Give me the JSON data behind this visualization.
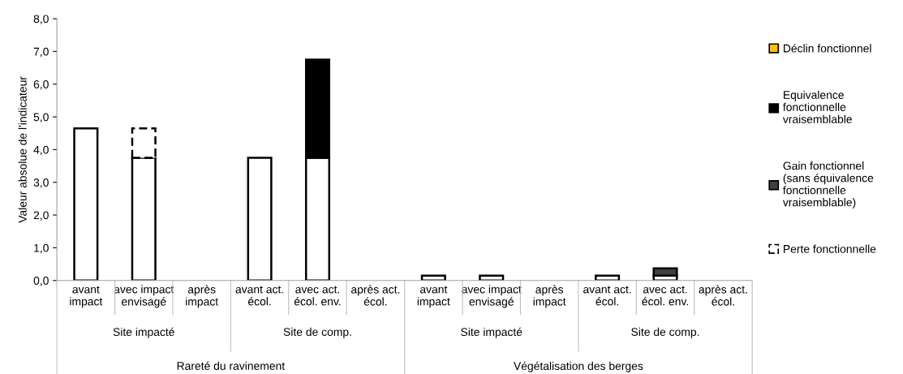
{
  "chart_data": {
    "type": "bar",
    "stacked": true,
    "ylabel": "Valeur absolue de l'indicateur",
    "categories": [
      "avant\nimpact",
      "avec impact\nenvisagé",
      "après\nimpact",
      "avant act.\nécol.",
      "avec act.\nécol. env.",
      "après act.\nécol.",
      "avant\nimpact",
      "avec impact\nenvisagé",
      "après\nimpact",
      "avant act.\nécol.",
      "avec act.\nécol. env.",
      "après act.\nécol."
    ],
    "annotations": [
      "Site impacté",
      "Site de comp.",
      "Site impacté",
      "Site de comp.",
      "Rareté du ravinement",
      "Végétalisation des berges"
    ],
    "series": [
      {
        "color": "#ffffff",
        "values": [
          4.65,
          3.75,
          null,
          3.75,
          3.75,
          null,
          0.15,
          0.15,
          null,
          0.15,
          0.15,
          null
        ]
      },
      {
        "name": "Perte fonctionnelle",
        "color": "#ffffff",
        "line_style": "dashed",
        "values": [
          null,
          0.9,
          null,
          null,
          null,
          null,
          null,
          null,
          null,
          null,
          null,
          null
        ]
      },
      {
        "name": "Gain fonctionnel (sans équivalence fonctionnelle vraisemblable)",
        "color": "#404040",
        "values": [
          null,
          null,
          null,
          null,
          null,
          null,
          null,
          null,
          null,
          null,
          0.22,
          null
        ]
      },
      {
        "name": "Equivalence fonctionnelle vraisemblable",
        "color": "#000000",
        "values": [
          null,
          null,
          null,
          null,
          3.0,
          null,
          null,
          null,
          null,
          null,
          null,
          null
        ]
      },
      {
        "name": "Déclin fonctionnel",
        "color": "#ffc000",
        "values": [
          null,
          null,
          null,
          null,
          null,
          null,
          null,
          null,
          null,
          null,
          null,
          null
        ]
      }
    ],
    "ylim": [
      0,
      8
    ],
    "yticks": [
      {
        "value": 0,
        "label": "0,0"
      },
      {
        "value": 1,
        "label": "1,0"
      },
      {
        "value": 2,
        "label": "2,0"
      },
      {
        "value": 3,
        "label": "3,0"
      },
      {
        "value": 4,
        "label": "4,0"
      },
      {
        "value": 5,
        "label": "5,0"
      },
      {
        "value": 6,
        "label": "6,0"
      },
      {
        "value": 7,
        "label": "7,0"
      },
      {
        "value": 8,
        "label": "8,0"
      }
    ],
    "grid": false,
    "legend": "right"
  }
}
